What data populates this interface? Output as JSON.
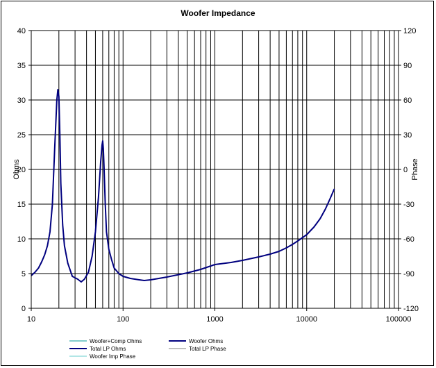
{
  "chart_data": {
    "type": "line",
    "title": "Woofer  Impedance",
    "xlabel": "",
    "ylabel": "Ohms",
    "y2label": "Phase",
    "x_scale": "log",
    "xlim": [
      10,
      100000
    ],
    "ylim": [
      0,
      40
    ],
    "y2lim": [
      -120,
      120
    ],
    "grid": true,
    "legend_position": "bottom",
    "x_ticks": [
      "10",
      "100",
      "1000",
      "10000",
      "100000"
    ],
    "y_ticks": [
      "0",
      "5",
      "10",
      "15",
      "20",
      "25",
      "30",
      "35",
      "40"
    ],
    "y2_ticks": [
      "-120",
      "-90",
      "-60",
      "-30",
      "0",
      "30",
      "60",
      "90",
      "120"
    ],
    "colors": {
      "impedance": "#00007f",
      "woofer_comp": "#009999",
      "total_lp_phase": "#808080",
      "woofer_imp_phase": "#66cccc",
      "grid": "#000000"
    },
    "legend": [
      {
        "label": "Woofer+Comp Ohms",
        "color": "#009999"
      },
      {
        "label": "Woofer Ohms",
        "color": "#00007f"
      },
      {
        "label": "Total LP Ohms",
        "color": "#00007f"
      },
      {
        "label": "Total LP Phase",
        "color": "#808080"
      },
      {
        "label": "Woofer Imp Phase",
        "color": "#66cccc"
      }
    ],
    "series": [
      {
        "name": "Woofer Ohms",
        "x": [
          10,
          11,
          12,
          13,
          14,
          15,
          16,
          17,
          18,
          19,
          19.5,
          20,
          20.5,
          21,
          22,
          23,
          25,
          28,
          32,
          35,
          38,
          42,
          46,
          50,
          54,
          57,
          59,
          60,
          61,
          62,
          64,
          66,
          70,
          75,
          80,
          90,
          100,
          120,
          150,
          170,
          200,
          300,
          500,
          700,
          1000,
          1500,
          2000,
          3000,
          4000,
          5000,
          6000,
          7000,
          8000,
          10000,
          12000,
          14000,
          16000,
          18000,
          20000
        ],
        "y": [
          4.7,
          5.2,
          5.8,
          6.7,
          7.7,
          9.0,
          11.0,
          15.0,
          23.0,
          30.0,
          31.5,
          30.5,
          25.0,
          18.0,
          12.0,
          9.0,
          6.5,
          4.6,
          4.2,
          3.8,
          4.2,
          5.2,
          7.5,
          11.0,
          16.0,
          21.0,
          23.5,
          24.1,
          23.0,
          20.5,
          15.0,
          11.0,
          8.5,
          7.0,
          5.8,
          5.0,
          4.6,
          4.3,
          4.1,
          4.0,
          4.1,
          4.5,
          5.1,
          5.6,
          6.3,
          6.6,
          6.9,
          7.4,
          7.8,
          8.2,
          8.7,
          9.2,
          9.7,
          10.6,
          11.7,
          12.9,
          14.3,
          15.8,
          17.2
        ]
      }
    ]
  }
}
